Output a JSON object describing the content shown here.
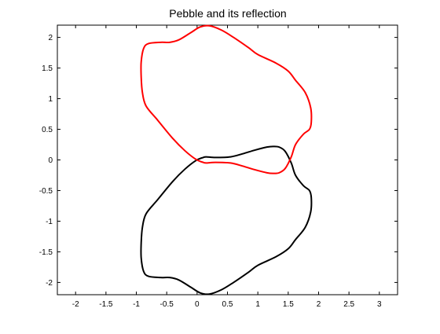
{
  "chart_data": {
    "type": "line",
    "title": "Pebble and its reflection",
    "xlabel": "",
    "ylabel": "",
    "xlim": [
      -2.3,
      3.3
    ],
    "ylim": [
      -2.2,
      2.2
    ],
    "xticks": [
      -2,
      -1.5,
      -1,
      -0.5,
      0,
      0.5,
      1,
      1.5,
      2,
      2.5,
      3
    ],
    "xtick_labels": [
      "-2",
      "-1.5",
      "-1",
      "-0.5",
      "0",
      "0.5",
      "1",
      "1.5",
      "2",
      "2.5",
      "3"
    ],
    "yticks": [
      2,
      1.5,
      1,
      0.5,
      0,
      -0.5,
      -1,
      -1.5,
      -2
    ],
    "ytick_labels": [
      "2",
      "1.5",
      "1",
      "0.5",
      "0",
      "-0.5",
      "-1",
      "-1.5",
      "-2"
    ],
    "grid": false,
    "legend": "none",
    "series": [
      {
        "color": "#000000",
        "closed": true,
        "points": [
          [
            0.1,
            0.04
          ],
          [
            0.15,
            0.05
          ],
          [
            0.3,
            0.04
          ],
          [
            0.55,
            0.05
          ],
          [
            0.75,
            0.1
          ],
          [
            0.95,
            0.16
          ],
          [
            1.15,
            0.21
          ],
          [
            1.25,
            0.22
          ],
          [
            1.35,
            0.21
          ],
          [
            1.45,
            0.14
          ],
          [
            1.55,
            -0.05
          ],
          [
            1.62,
            -0.25
          ],
          [
            1.75,
            -0.42
          ],
          [
            1.85,
            -0.5
          ],
          [
            1.88,
            -0.62
          ],
          [
            1.87,
            -0.85
          ],
          [
            1.78,
            -1.1
          ],
          [
            1.62,
            -1.3
          ],
          [
            1.5,
            -1.45
          ],
          [
            1.3,
            -1.58
          ],
          [
            1.0,
            -1.72
          ],
          [
            0.85,
            -1.83
          ],
          [
            0.6,
            -2.0
          ],
          [
            0.4,
            -2.12
          ],
          [
            0.2,
            -2.19
          ],
          [
            0.05,
            -2.17
          ],
          [
            -0.1,
            -2.08
          ],
          [
            -0.3,
            -1.96
          ],
          [
            -0.45,
            -1.92
          ],
          [
            -0.6,
            -1.92
          ],
          [
            -0.8,
            -1.9
          ],
          [
            -0.88,
            -1.82
          ],
          [
            -0.92,
            -1.6
          ],
          [
            -0.92,
            -1.35
          ],
          [
            -0.9,
            -1.1
          ],
          [
            -0.84,
            -0.88
          ],
          [
            -0.65,
            -0.65
          ],
          [
            -0.4,
            -0.35
          ],
          [
            -0.2,
            -0.15
          ],
          [
            -0.02,
            -0.01
          ]
        ]
      },
      {
        "color": "#ff0000",
        "closed": true,
        "points": [
          [
            0.1,
            -0.04
          ],
          [
            0.15,
            -0.05
          ],
          [
            0.3,
            -0.04
          ],
          [
            0.55,
            -0.05
          ],
          [
            0.75,
            -0.1
          ],
          [
            0.95,
            -0.16
          ],
          [
            1.15,
            -0.21
          ],
          [
            1.25,
            -0.22
          ],
          [
            1.35,
            -0.21
          ],
          [
            1.45,
            -0.14
          ],
          [
            1.55,
            0.05
          ],
          [
            1.62,
            0.25
          ],
          [
            1.75,
            0.42
          ],
          [
            1.85,
            0.5
          ],
          [
            1.88,
            0.62
          ],
          [
            1.87,
            0.85
          ],
          [
            1.78,
            1.1
          ],
          [
            1.62,
            1.3
          ],
          [
            1.5,
            1.45
          ],
          [
            1.3,
            1.58
          ],
          [
            1.0,
            1.72
          ],
          [
            0.85,
            1.83
          ],
          [
            0.6,
            2.0
          ],
          [
            0.4,
            2.12
          ],
          [
            0.2,
            2.19
          ],
          [
            0.05,
            2.17
          ],
          [
            -0.1,
            2.08
          ],
          [
            -0.3,
            1.96
          ],
          [
            -0.45,
            1.92
          ],
          [
            -0.6,
            1.92
          ],
          [
            -0.8,
            1.9
          ],
          [
            -0.88,
            1.82
          ],
          [
            -0.92,
            1.6
          ],
          [
            -0.92,
            1.35
          ],
          [
            -0.9,
            1.1
          ],
          [
            -0.84,
            0.88
          ],
          [
            -0.65,
            0.65
          ],
          [
            -0.4,
            0.35
          ],
          [
            -0.2,
            0.15
          ],
          [
            -0.02,
            0.01
          ]
        ]
      }
    ]
  }
}
